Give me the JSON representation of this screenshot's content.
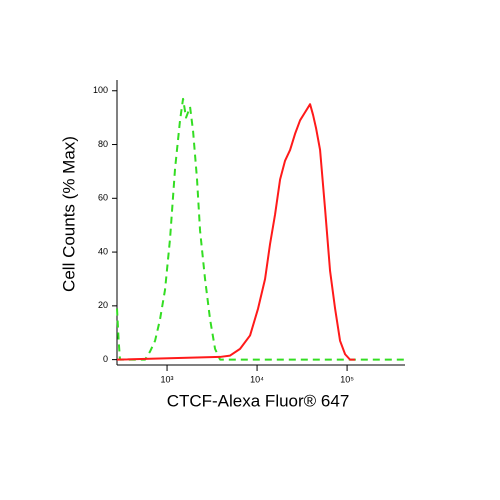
{
  "chart_data": {
    "type": "line",
    "xlabel": "CTCF-Alexa Fluor® 647",
    "ylabel": "Cell Counts (% Max)",
    "xscale": "log",
    "xlim": [
      278,
      440000
    ],
    "ylim": [
      -2,
      104
    ],
    "xticks": [
      {
        "value": 1000,
        "label": "10³"
      },
      {
        "value": 10000,
        "label": "10⁴"
      },
      {
        "value": 100000,
        "label": "10⁵"
      }
    ],
    "yticks": [
      0,
      20,
      40,
      60,
      80,
      100
    ],
    "series": [
      {
        "color": "#33dd22",
        "linestyle": "dashed",
        "x": [
          278,
          290,
          300,
          570,
          647,
          736,
          836,
          950,
          1080,
          1227,
          1394,
          1506,
          1626,
          1802,
          1946,
          2154,
          2326,
          2643,
          3005,
          3415,
          3881,
          440000
        ],
        "values": [
          19,
          7,
          0,
          0,
          3,
          7,
          15,
          26,
          45,
          71,
          89,
          97,
          90,
          94,
          85,
          67,
          48,
          30,
          15,
          4,
          0,
          0
        ]
      },
      {
        "color": "#ff1a1a",
        "linestyle": "solid",
        "x": [
          278,
          3881,
          5012,
          6471,
          8363,
          10260,
          12270,
          13940,
          15850,
          18020,
          20470,
          23280,
          26440,
          30050,
          34150,
          38810,
          41890,
          45290,
          50120,
          56970,
          64710,
          73560,
          83560,
          95060,
          107900,
          122700
        ],
        "values": [
          0,
          1,
          1.5,
          4,
          9,
          19,
          30,
          43,
          54,
          67,
          74,
          78,
          84,
          89,
          92,
          95,
          91,
          86,
          78,
          56,
          33,
          19,
          7,
          2,
          0,
          0
        ]
      }
    ]
  }
}
